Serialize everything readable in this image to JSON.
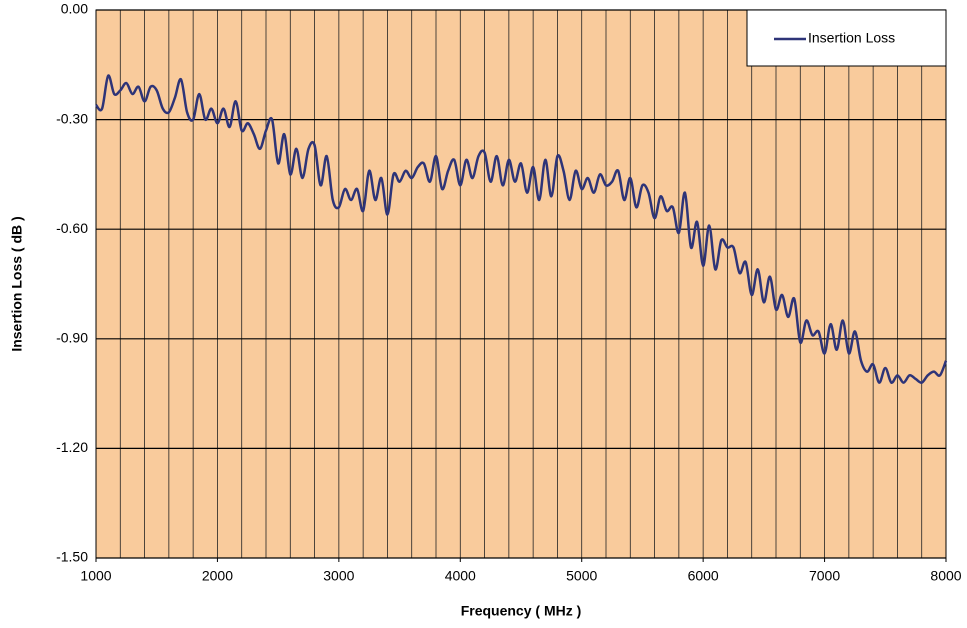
{
  "chart_data": {
    "type": "line",
    "xlabel": "Frequency ( MHz )",
    "ylabel": "Insertion Loss ( dB )",
    "xlim": [
      1000,
      8000
    ],
    "ylim": [
      -1.5,
      0
    ],
    "xticks": [
      1000,
      2000,
      3000,
      4000,
      5000,
      6000,
      7000,
      8000
    ],
    "x_gridlines": [
      1200,
      1400,
      1600,
      1800,
      2000,
      2200,
      2400,
      2600,
      2800,
      3000,
      3200,
      3400,
      3600,
      3800,
      4000,
      4200,
      4400,
      4600,
      4800,
      5000,
      5200,
      5400,
      5600,
      5800,
      6000,
      6200,
      6400,
      6600,
      6800,
      7000,
      7200,
      7400,
      7600,
      7800
    ],
    "yticks": [
      {
        "value": 0,
        "label": "0.00"
      },
      {
        "value": -0.3,
        "label": "-0.30"
      },
      {
        "value": -0.6,
        "label": "-0.60"
      },
      {
        "value": -0.9,
        "label": "-0.90"
      },
      {
        "value": -1.2,
        "label": "-1.20"
      },
      {
        "value": -1.5,
        "label": "-1.50"
      }
    ],
    "grid": true,
    "background": "#f9cb9c",
    "legend": "upper right",
    "x": [
      1000,
      1050,
      1100,
      1150,
      1200,
      1250,
      1300,
      1350,
      1400,
      1450,
      1500,
      1550,
      1600,
      1650,
      1700,
      1750,
      1800,
      1850,
      1900,
      1950,
      2000,
      2050,
      2100,
      2150,
      2200,
      2250,
      2300,
      2350,
      2400,
      2450,
      2500,
      2550,
      2600,
      2650,
      2700,
      2750,
      2800,
      2850,
      2900,
      2950,
      3000,
      3050,
      3100,
      3150,
      3200,
      3250,
      3300,
      3350,
      3400,
      3450,
      3500,
      3550,
      3600,
      3650,
      3700,
      3750,
      3800,
      3850,
      3900,
      3950,
      4000,
      4050,
      4100,
      4150,
      4200,
      4250,
      4300,
      4350,
      4400,
      4450,
      4500,
      4550,
      4600,
      4650,
      4700,
      4750,
      4800,
      4850,
      4900,
      4950,
      5000,
      5050,
      5100,
      5150,
      5200,
      5250,
      5300,
      5350,
      5400,
      5450,
      5500,
      5550,
      5600,
      5650,
      5700,
      5750,
      5800,
      5850,
      5900,
      5950,
      6000,
      6050,
      6100,
      6150,
      6200,
      6250,
      6300,
      6350,
      6400,
      6450,
      6500,
      6550,
      6600,
      6650,
      6700,
      6750,
      6800,
      6850,
      6900,
      6950,
      7000,
      7050,
      7100,
      7150,
      7200,
      7250,
      7300,
      7350,
      7400,
      7450,
      7500,
      7550,
      7600,
      7650,
      7700,
      7750,
      7800,
      7850,
      7900,
      7950,
      8000
    ],
    "series": [
      {
        "name": "Insertion Loss",
        "color": "#2e3478",
        "values": [
          -0.26,
          -0.27,
          -0.18,
          -0.23,
          -0.22,
          -0.2,
          -0.23,
          -0.21,
          -0.25,
          -0.21,
          -0.22,
          -0.27,
          -0.28,
          -0.24,
          -0.19,
          -0.28,
          -0.3,
          -0.23,
          -0.3,
          -0.27,
          -0.31,
          -0.27,
          -0.32,
          -0.25,
          -0.33,
          -0.31,
          -0.34,
          -0.38,
          -0.33,
          -0.3,
          -0.42,
          -0.34,
          -0.45,
          -0.38,
          -0.46,
          -0.38,
          -0.37,
          -0.48,
          -0.4,
          -0.52,
          -0.54,
          -0.49,
          -0.52,
          -0.49,
          -0.55,
          -0.44,
          -0.52,
          -0.46,
          -0.56,
          -0.45,
          -0.47,
          -0.44,
          -0.46,
          -0.43,
          -0.42,
          -0.47,
          -0.4,
          -0.49,
          -0.44,
          -0.41,
          -0.48,
          -0.41,
          -0.46,
          -0.4,
          -0.39,
          -0.47,
          -0.4,
          -0.48,
          -0.41,
          -0.47,
          -0.42,
          -0.5,
          -0.43,
          -0.52,
          -0.41,
          -0.51,
          -0.4,
          -0.44,
          -0.52,
          -0.44,
          -0.49,
          -0.46,
          -0.5,
          -0.45,
          -0.48,
          -0.47,
          -0.44,
          -0.52,
          -0.46,
          -0.54,
          -0.48,
          -0.5,
          -0.57,
          -0.51,
          -0.55,
          -0.54,
          -0.61,
          -0.5,
          -0.65,
          -0.58,
          -0.7,
          -0.59,
          -0.71,
          -0.63,
          -0.65,
          -0.65,
          -0.72,
          -0.69,
          -0.78,
          -0.71,
          -0.8,
          -0.73,
          -0.82,
          -0.78,
          -0.84,
          -0.79,
          -0.91,
          -0.85,
          -0.89,
          -0.88,
          -0.94,
          -0.86,
          -0.93,
          -0.85,
          -0.94,
          -0.88,
          -0.96,
          -0.99,
          -0.97,
          -1.02,
          -0.98,
          -1.02,
          -1.0,
          -1.02,
          -1.0,
          -1.01,
          -1.02,
          -1.0,
          -0.99,
          -1.0,
          -0.96
        ]
      }
    ]
  }
}
